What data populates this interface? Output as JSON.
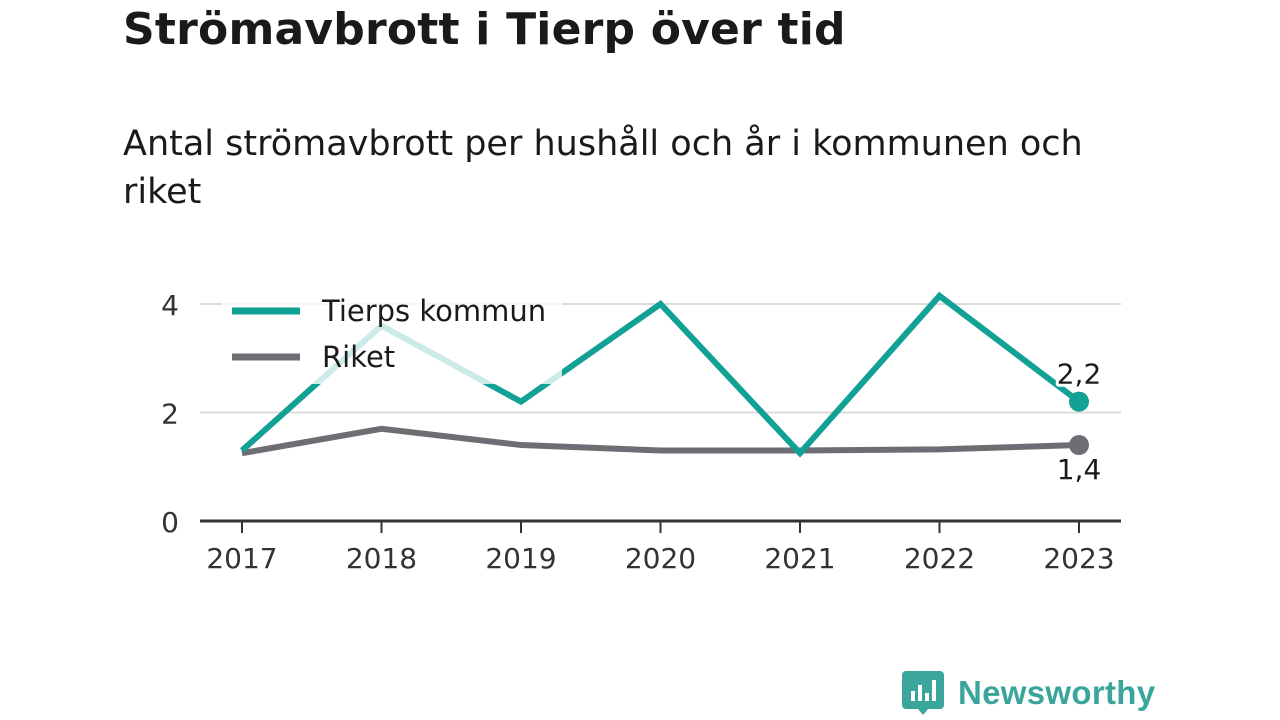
{
  "page": {
    "title": "Strömavbrott i Tierp över tid",
    "subtitle": "Antal strömavbrott per hushåll och år i kommunen och riket"
  },
  "brand": {
    "name": "Newsworthy",
    "logo_icon": "bar-chart-speech-bubble-icon",
    "color": "#3aa59a"
  },
  "chart_data": {
    "type": "line",
    "x": [
      "2017",
      "2018",
      "2019",
      "2020",
      "2021",
      "2022",
      "2023"
    ],
    "ylim": [
      0,
      4.5
    ],
    "yticks": [
      "0",
      "2",
      "4"
    ],
    "grid": true,
    "legend_position": "top-left",
    "series": [
      {
        "name": "Tierps kommun",
        "color": "#12a195",
        "values": [
          1.3,
          3.6,
          2.2,
          4.0,
          1.25,
          4.15,
          2.2
        ],
        "end_label": "2,2"
      },
      {
        "name": "Riket",
        "color": "#6e6d73",
        "values": [
          1.25,
          1.7,
          1.4,
          1.3,
          1.3,
          1.32,
          1.4
        ],
        "end_label": "1,4"
      }
    ]
  }
}
